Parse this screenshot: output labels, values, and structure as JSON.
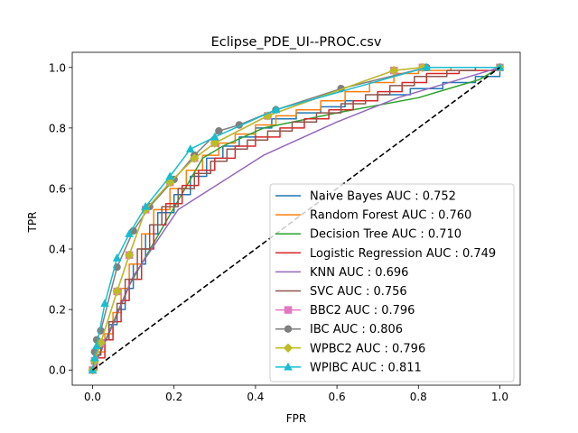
{
  "chart_data": {
    "type": "line",
    "title": "Eclipse_PDE_UI--PROC.csv",
    "xlabel": "FPR",
    "ylabel": "TPR",
    "xlim": [
      -0.05,
      1.05
    ],
    "ylim": [
      -0.05,
      1.05
    ],
    "xticks": [
      "0.0",
      "0.2",
      "0.4",
      "0.6",
      "0.8",
      "1.0"
    ],
    "yticks": [
      "0.0",
      "0.2",
      "0.4",
      "0.6",
      "0.8",
      "1.0"
    ],
    "grid": false,
    "legend_position": "lower-right",
    "reference_line": {
      "x": [
        0,
        1
      ],
      "y": [
        0,
        1
      ],
      "color": "#000000",
      "style": "dashed"
    },
    "series": [
      {
        "name": "Naive Bayes AUC : 0.752",
        "color": "#1f77b4",
        "marker": "none",
        "step": true,
        "x": [
          0,
          0.01,
          0.02,
          0.04,
          0.06,
          0.08,
          0.1,
          0.13,
          0.16,
          0.2,
          0.24,
          0.28,
          0.32,
          0.36,
          0.4,
          0.44,
          0.5,
          0.56,
          0.62,
          0.7,
          0.78,
          0.86,
          0.94,
          1.0
        ],
        "y": [
          0,
          0.05,
          0.1,
          0.15,
          0.2,
          0.27,
          0.35,
          0.45,
          0.52,
          0.58,
          0.64,
          0.7,
          0.74,
          0.77,
          0.8,
          0.83,
          0.85,
          0.87,
          0.89,
          0.91,
          0.93,
          0.95,
          0.97,
          1.0
        ]
      },
      {
        "name": "Random Forest AUC : 0.760",
        "color": "#ff7f0e",
        "marker": "none",
        "step": true,
        "x": [
          0,
          0.01,
          0.03,
          0.05,
          0.07,
          0.09,
          0.12,
          0.15,
          0.19,
          0.23,
          0.27,
          0.31,
          0.35,
          0.4,
          0.45,
          0.5,
          0.56,
          0.62,
          0.68,
          0.74,
          0.8,
          0.88,
          1.0
        ],
        "y": [
          0,
          0.06,
          0.12,
          0.19,
          0.27,
          0.35,
          0.45,
          0.53,
          0.6,
          0.66,
          0.71,
          0.75,
          0.78,
          0.81,
          0.84,
          0.86,
          0.89,
          0.92,
          0.95,
          0.98,
          0.99,
          1.0,
          1.0
        ]
      },
      {
        "name": "Decision Tree AUC : 0.710",
        "color": "#2ca02c",
        "marker": "none",
        "step": false,
        "x": [
          0,
          0.09,
          0.27,
          0.32,
          0.42,
          0.6,
          0.8,
          0.95,
          1.0
        ],
        "y": [
          0,
          0.28,
          0.7,
          0.74,
          0.8,
          0.85,
          0.9,
          0.96,
          1.0
        ]
      },
      {
        "name": "Logistic Regression AUC : 0.749",
        "color": "#d62728",
        "marker": "none",
        "step": true,
        "x": [
          0,
          0.01,
          0.03,
          0.05,
          0.07,
          0.09,
          0.12,
          0.15,
          0.18,
          0.22,
          0.26,
          0.3,
          0.35,
          0.4,
          0.46,
          0.52,
          0.58,
          0.64,
          0.7,
          0.76,
          0.82,
          0.9,
          1.0
        ],
        "y": [
          0,
          0.04,
          0.1,
          0.16,
          0.23,
          0.3,
          0.4,
          0.48,
          0.55,
          0.61,
          0.66,
          0.7,
          0.74,
          0.77,
          0.8,
          0.83,
          0.86,
          0.89,
          0.92,
          0.95,
          0.98,
          0.99,
          1.0
        ]
      },
      {
        "name": "KNN AUC : 0.696",
        "color": "#9467bd",
        "marker": "none",
        "step": false,
        "x": [
          0,
          0.05,
          0.1,
          0.21,
          0.42,
          0.6,
          0.75,
          0.9,
          1.0
        ],
        "y": [
          0,
          0.15,
          0.31,
          0.53,
          0.71,
          0.82,
          0.9,
          0.96,
          1.0
        ]
      },
      {
        "name": "SVC AUC : 0.756",
        "color": "#8c564b",
        "marker": "none",
        "step": true,
        "x": [
          0,
          0.01,
          0.02,
          0.04,
          0.06,
          0.08,
          0.11,
          0.14,
          0.17,
          0.21,
          0.25,
          0.29,
          0.33,
          0.38,
          0.43,
          0.49,
          0.55,
          0.61,
          0.67,
          0.73,
          0.79,
          0.87,
          0.94,
          1.0
        ],
        "y": [
          0,
          0.05,
          0.1,
          0.16,
          0.22,
          0.3,
          0.4,
          0.48,
          0.54,
          0.6,
          0.65,
          0.69,
          0.73,
          0.76,
          0.79,
          0.82,
          0.85,
          0.88,
          0.91,
          0.94,
          0.97,
          0.99,
          1.0,
          1.0
        ]
      },
      {
        "name": "BBC2 AUC : 0.796",
        "color": "#e377c2",
        "marker": "square",
        "step": false,
        "x": [
          0,
          0.005,
          0.02,
          0.06,
          0.09,
          0.13,
          0.19,
          0.25,
          0.3,
          0.43,
          0.74,
          0.81,
          1.0
        ],
        "y": [
          0,
          0.03,
          0.09,
          0.26,
          0.38,
          0.53,
          0.62,
          0.7,
          0.75,
          0.84,
          0.99,
          1.0,
          1.0
        ]
      },
      {
        "name": "IBC AUC : 0.806",
        "color": "#7f7f7f",
        "marker": "circle",
        "step": false,
        "x": [
          0,
          0.005,
          0.01,
          0.02,
          0.06,
          0.1,
          0.14,
          0.2,
          0.25,
          0.31,
          0.36,
          0.45,
          0.61,
          0.82,
          1.0
        ],
        "y": [
          0,
          0.06,
          0.1,
          0.13,
          0.34,
          0.46,
          0.54,
          0.63,
          0.71,
          0.79,
          0.81,
          0.86,
          0.93,
          1.0,
          1.0
        ]
      },
      {
        "name": "WPBC2 AUC : 0.796",
        "color": "#bcbd22",
        "marker": "diamond",
        "step": false,
        "x": [
          0,
          0.005,
          0.02,
          0.06,
          0.09,
          0.13,
          0.19,
          0.25,
          0.3,
          0.43,
          0.74,
          0.81,
          1.0
        ],
        "y": [
          0,
          0.03,
          0.09,
          0.26,
          0.38,
          0.53,
          0.62,
          0.7,
          0.75,
          0.84,
          0.99,
          1.0,
          1.0
        ]
      },
      {
        "name": "WPIBC AUC : 0.811",
        "color": "#17becf",
        "marker": "triangle",
        "step": false,
        "x": [
          0,
          0.005,
          0.01,
          0.03,
          0.06,
          0.09,
          0.13,
          0.19,
          0.24,
          0.3,
          0.45,
          0.82,
          1.0
        ],
        "y": [
          0,
          0.04,
          0.08,
          0.22,
          0.37,
          0.45,
          0.54,
          0.64,
          0.73,
          0.77,
          0.86,
          1.0,
          1.0
        ]
      }
    ]
  }
}
